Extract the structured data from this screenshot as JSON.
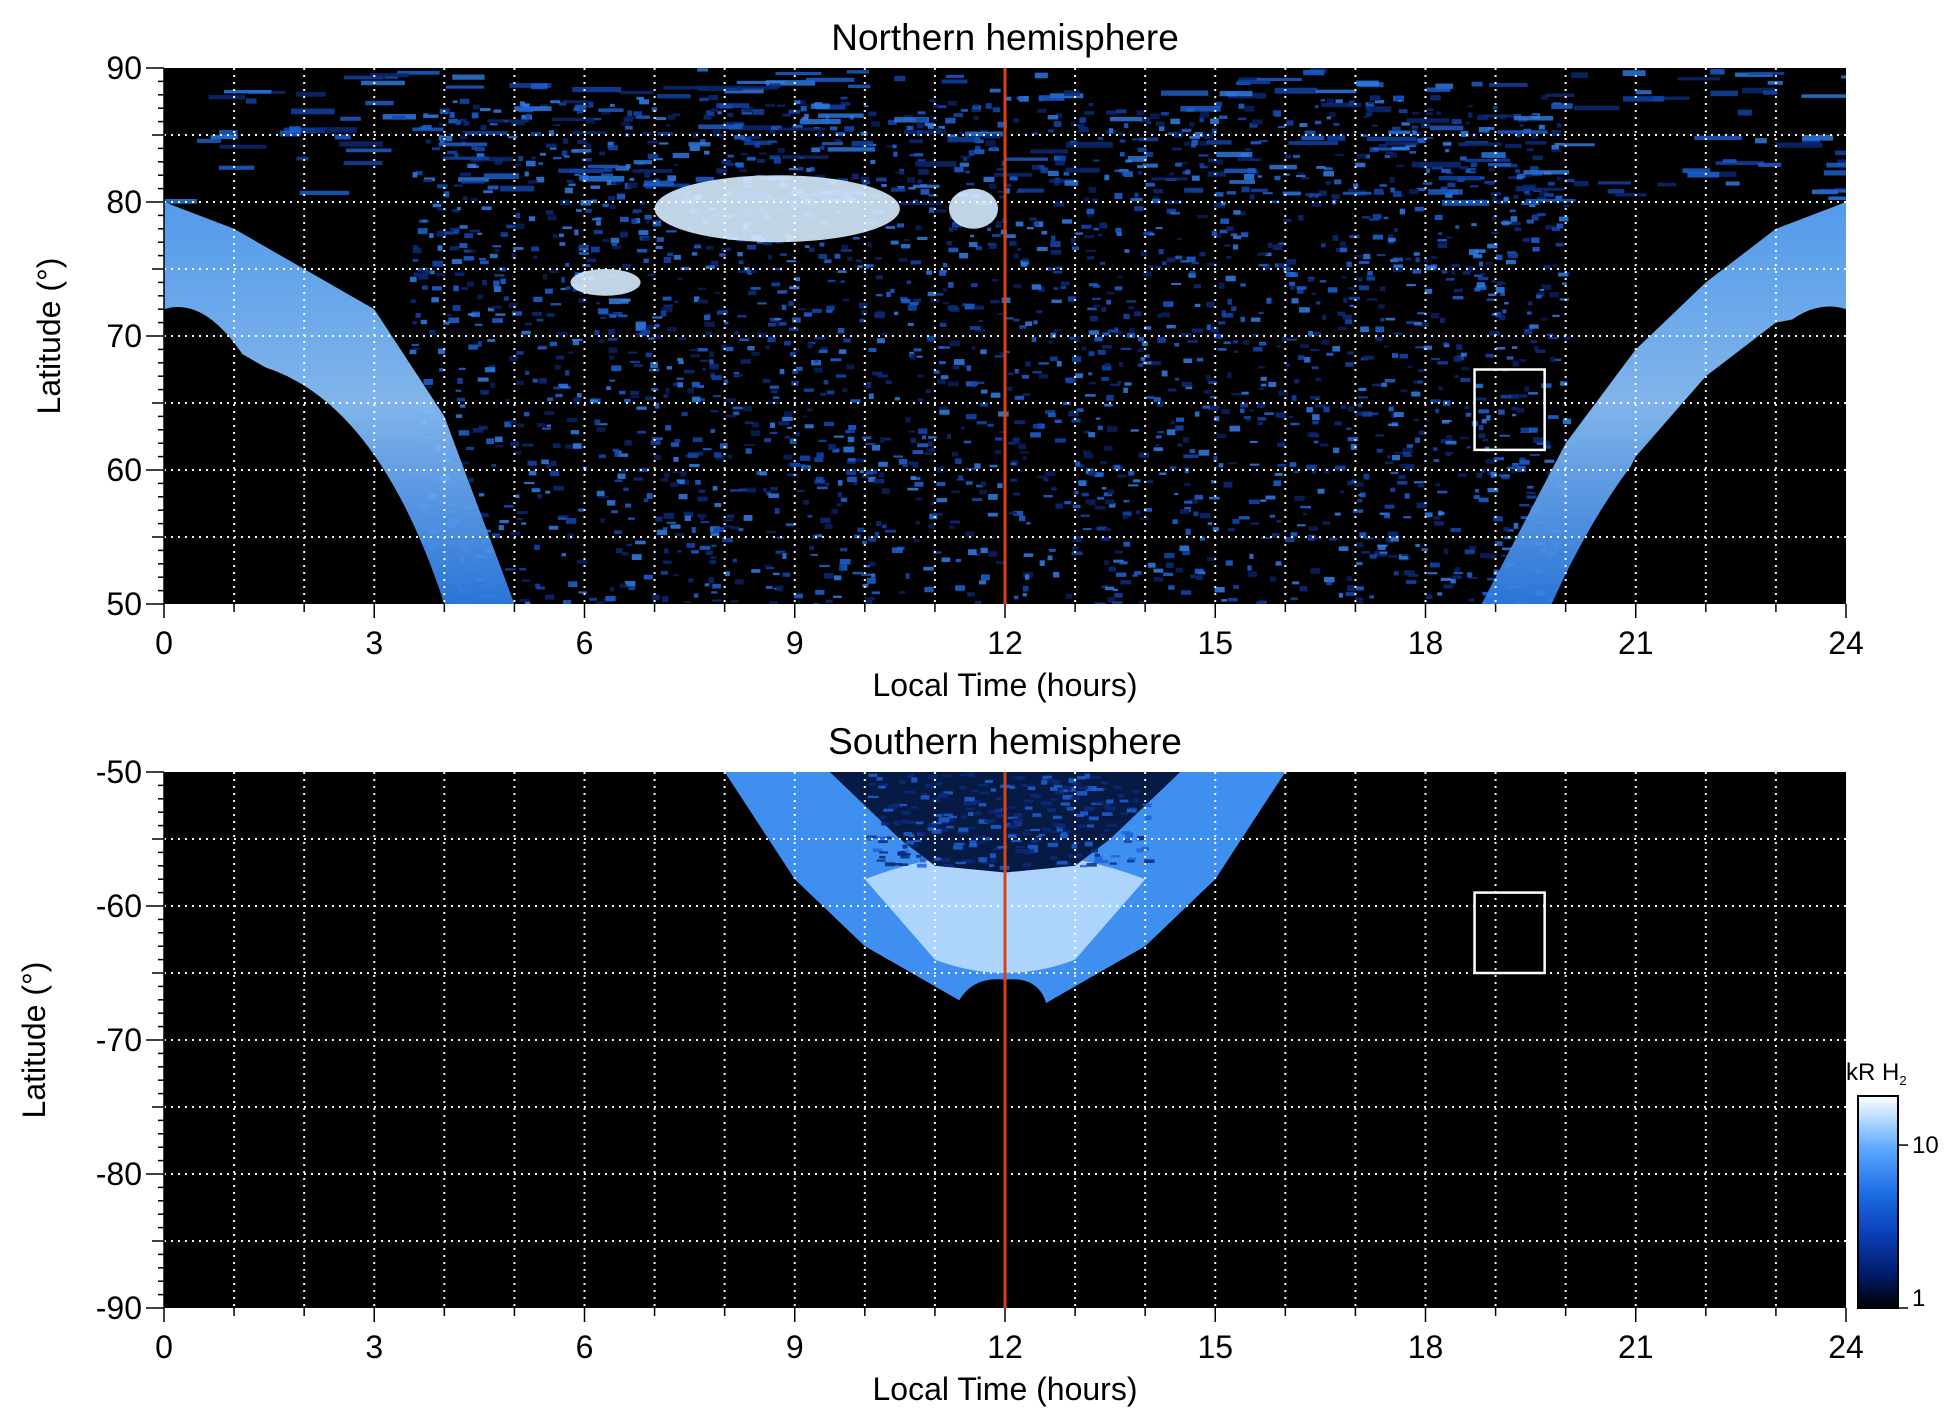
{
  "chart_data": [
    {
      "type": "heatmap",
      "title": "Northern hemisphere",
      "xlabel": "Local Time (hours)",
      "ylabel": "Latitude (°)",
      "xlim": [
        0,
        24
      ],
      "ylim": [
        50,
        90
      ],
      "x_ticks": [
        "0",
        "3",
        "6",
        "9",
        "12",
        "15",
        "18",
        "21",
        "24"
      ],
      "y_ticks": [
        "50",
        "60",
        "70",
        "80",
        "90"
      ],
      "grid": true,
      "marker_line": {
        "x": 12,
        "color": "#d84315"
      },
      "box": {
        "x": [
          18.7,
          19.7
        ],
        "y": [
          61.5,
          67.5
        ]
      },
      "auroral_oval": {
        "center_x": 12,
        "upper_latitude": [
          [
            0,
            80
          ],
          [
            1,
            78
          ],
          [
            2,
            75
          ],
          [
            3,
            72
          ],
          [
            4,
            64
          ],
          [
            5,
            50
          ],
          [
            18.8,
            50
          ],
          [
            20,
            62
          ],
          [
            21,
            69
          ],
          [
            22,
            74
          ],
          [
            23,
            78
          ],
          [
            24,
            80
          ]
        ],
        "lower_latitude": [
          [
            0,
            72
          ],
          [
            1,
            69
          ],
          [
            2,
            66
          ],
          [
            3,
            60
          ],
          [
            3.6,
            55
          ],
          [
            4,
            50
          ],
          [
            19.8,
            50
          ],
          [
            20.5,
            56
          ],
          [
            21,
            61
          ],
          [
            22,
            67
          ],
          [
            23,
            71
          ],
          [
            24,
            72
          ]
        ]
      },
      "bright_patches": [
        {
          "x": [
            7,
            10.5
          ],
          "y": [
            77,
            82
          ]
        },
        {
          "x": [
            5.8,
            6.8
          ],
          "y": [
            73,
            75
          ]
        },
        {
          "x": [
            11.2,
            11.9
          ],
          "y": [
            78,
            81
          ]
        }
      ]
    },
    {
      "type": "heatmap",
      "title": "Southern hemisphere",
      "xlabel": "Local Time (hours)",
      "ylabel": "Latitude (°)",
      "xlim": [
        0,
        24
      ],
      "ylim": [
        -90,
        -50
      ],
      "x_ticks": [
        "0",
        "3",
        "6",
        "9",
        "12",
        "15",
        "18",
        "21",
        "24"
      ],
      "y_ticks": [
        "-50",
        "-60",
        "-70",
        "-80",
        "-90"
      ],
      "grid": true,
      "marker_line": {
        "x": 12,
        "color": "#d84315"
      },
      "box": {
        "x": [
          18.7,
          19.7
        ],
        "y": [
          -65,
          -59
        ]
      },
      "auroral_oval": {
        "outer_edge": [
          [
            8,
            -50
          ],
          [
            9,
            -58
          ],
          [
            10,
            -63
          ],
          [
            11,
            -66
          ],
          [
            11.5,
            -67.5
          ],
          [
            12,
            -67
          ],
          [
            12.5,
            -67.5
          ],
          [
            13,
            -66
          ],
          [
            14,
            -63
          ],
          [
            15,
            -58
          ],
          [
            16,
            -50
          ]
        ],
        "inner_edge": [
          [
            9.5,
            -50
          ],
          [
            10.5,
            -55
          ],
          [
            11,
            -57
          ],
          [
            12,
            -57.5
          ],
          [
            13,
            -57
          ],
          [
            13.5,
            -55
          ],
          [
            14.5,
            -50
          ]
        ]
      }
    }
  ],
  "colorbar": {
    "label": "kR H",
    "label_sub": "2",
    "ticks": [
      "1",
      "10"
    ],
    "scale": "log",
    "range": [
      1,
      20
    ],
    "colors": [
      "#000000",
      "#001a66",
      "#0a3fb8",
      "#1f6fe6",
      "#5aa8ff",
      "#c9e4ff",
      "#ffffff"
    ]
  }
}
